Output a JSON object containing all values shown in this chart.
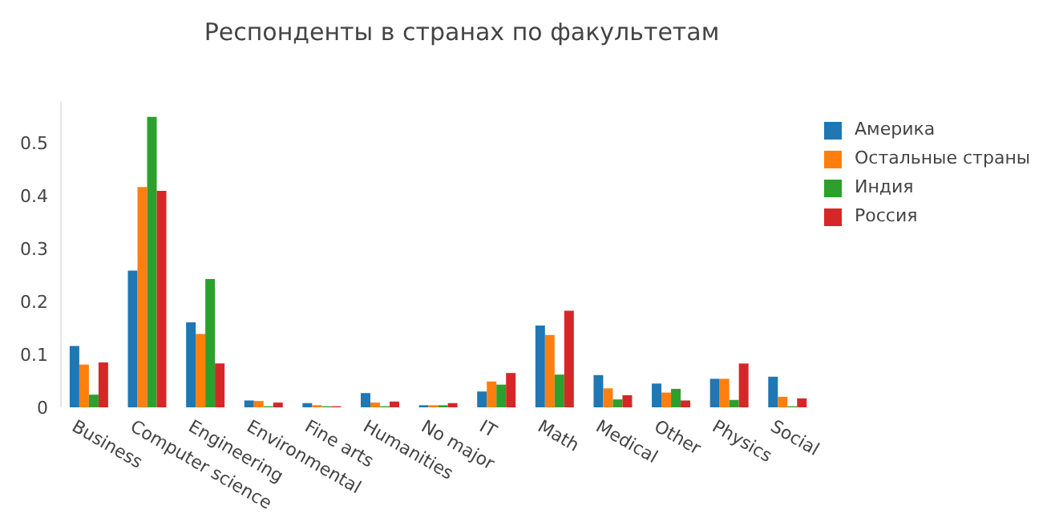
{
  "chart_data": {
    "type": "bar",
    "title": "Респонденты в странах по факультетам",
    "categories": [
      "Business",
      "Computer science",
      "Engineering",
      "Environmental",
      "Fine arts",
      "Humanities",
      "No major",
      "IT",
      "Math",
      "Medical",
      "Other",
      "Physics",
      "Social"
    ],
    "series": [
      {
        "name": "Америка",
        "color": "#1f77b4",
        "values": [
          0.116,
          0.259,
          0.161,
          0.013,
          0.008,
          0.027,
          0.004,
          0.03,
          0.155,
          0.061,
          0.045,
          0.054,
          0.058
        ]
      },
      {
        "name": "Остальные страны",
        "color": "#ff7f0e",
        "values": [
          0.081,
          0.417,
          0.139,
          0.012,
          0.004,
          0.009,
          0.004,
          0.049,
          0.137,
          0.036,
          0.028,
          0.054,
          0.02
        ]
      },
      {
        "name": "Индия",
        "color": "#2ca02c",
        "values": [
          0.024,
          0.55,
          0.243,
          0.002,
          0.002,
          0.002,
          0.004,
          0.043,
          0.062,
          0.015,
          0.035,
          0.014,
          0.002
        ]
      },
      {
        "name": "Россия",
        "color": "#d62728",
        "values": [
          0.085,
          0.41,
          0.083,
          0.009,
          0.002,
          0.011,
          0.008,
          0.065,
          0.183,
          0.023,
          0.013,
          0.083,
          0.017
        ]
      }
    ],
    "ylim": [
      0,
      0.58
    ],
    "yticks": [
      0,
      0.1,
      0.2,
      0.3,
      0.4,
      0.5
    ],
    "grid": false,
    "legend": "top right"
  }
}
